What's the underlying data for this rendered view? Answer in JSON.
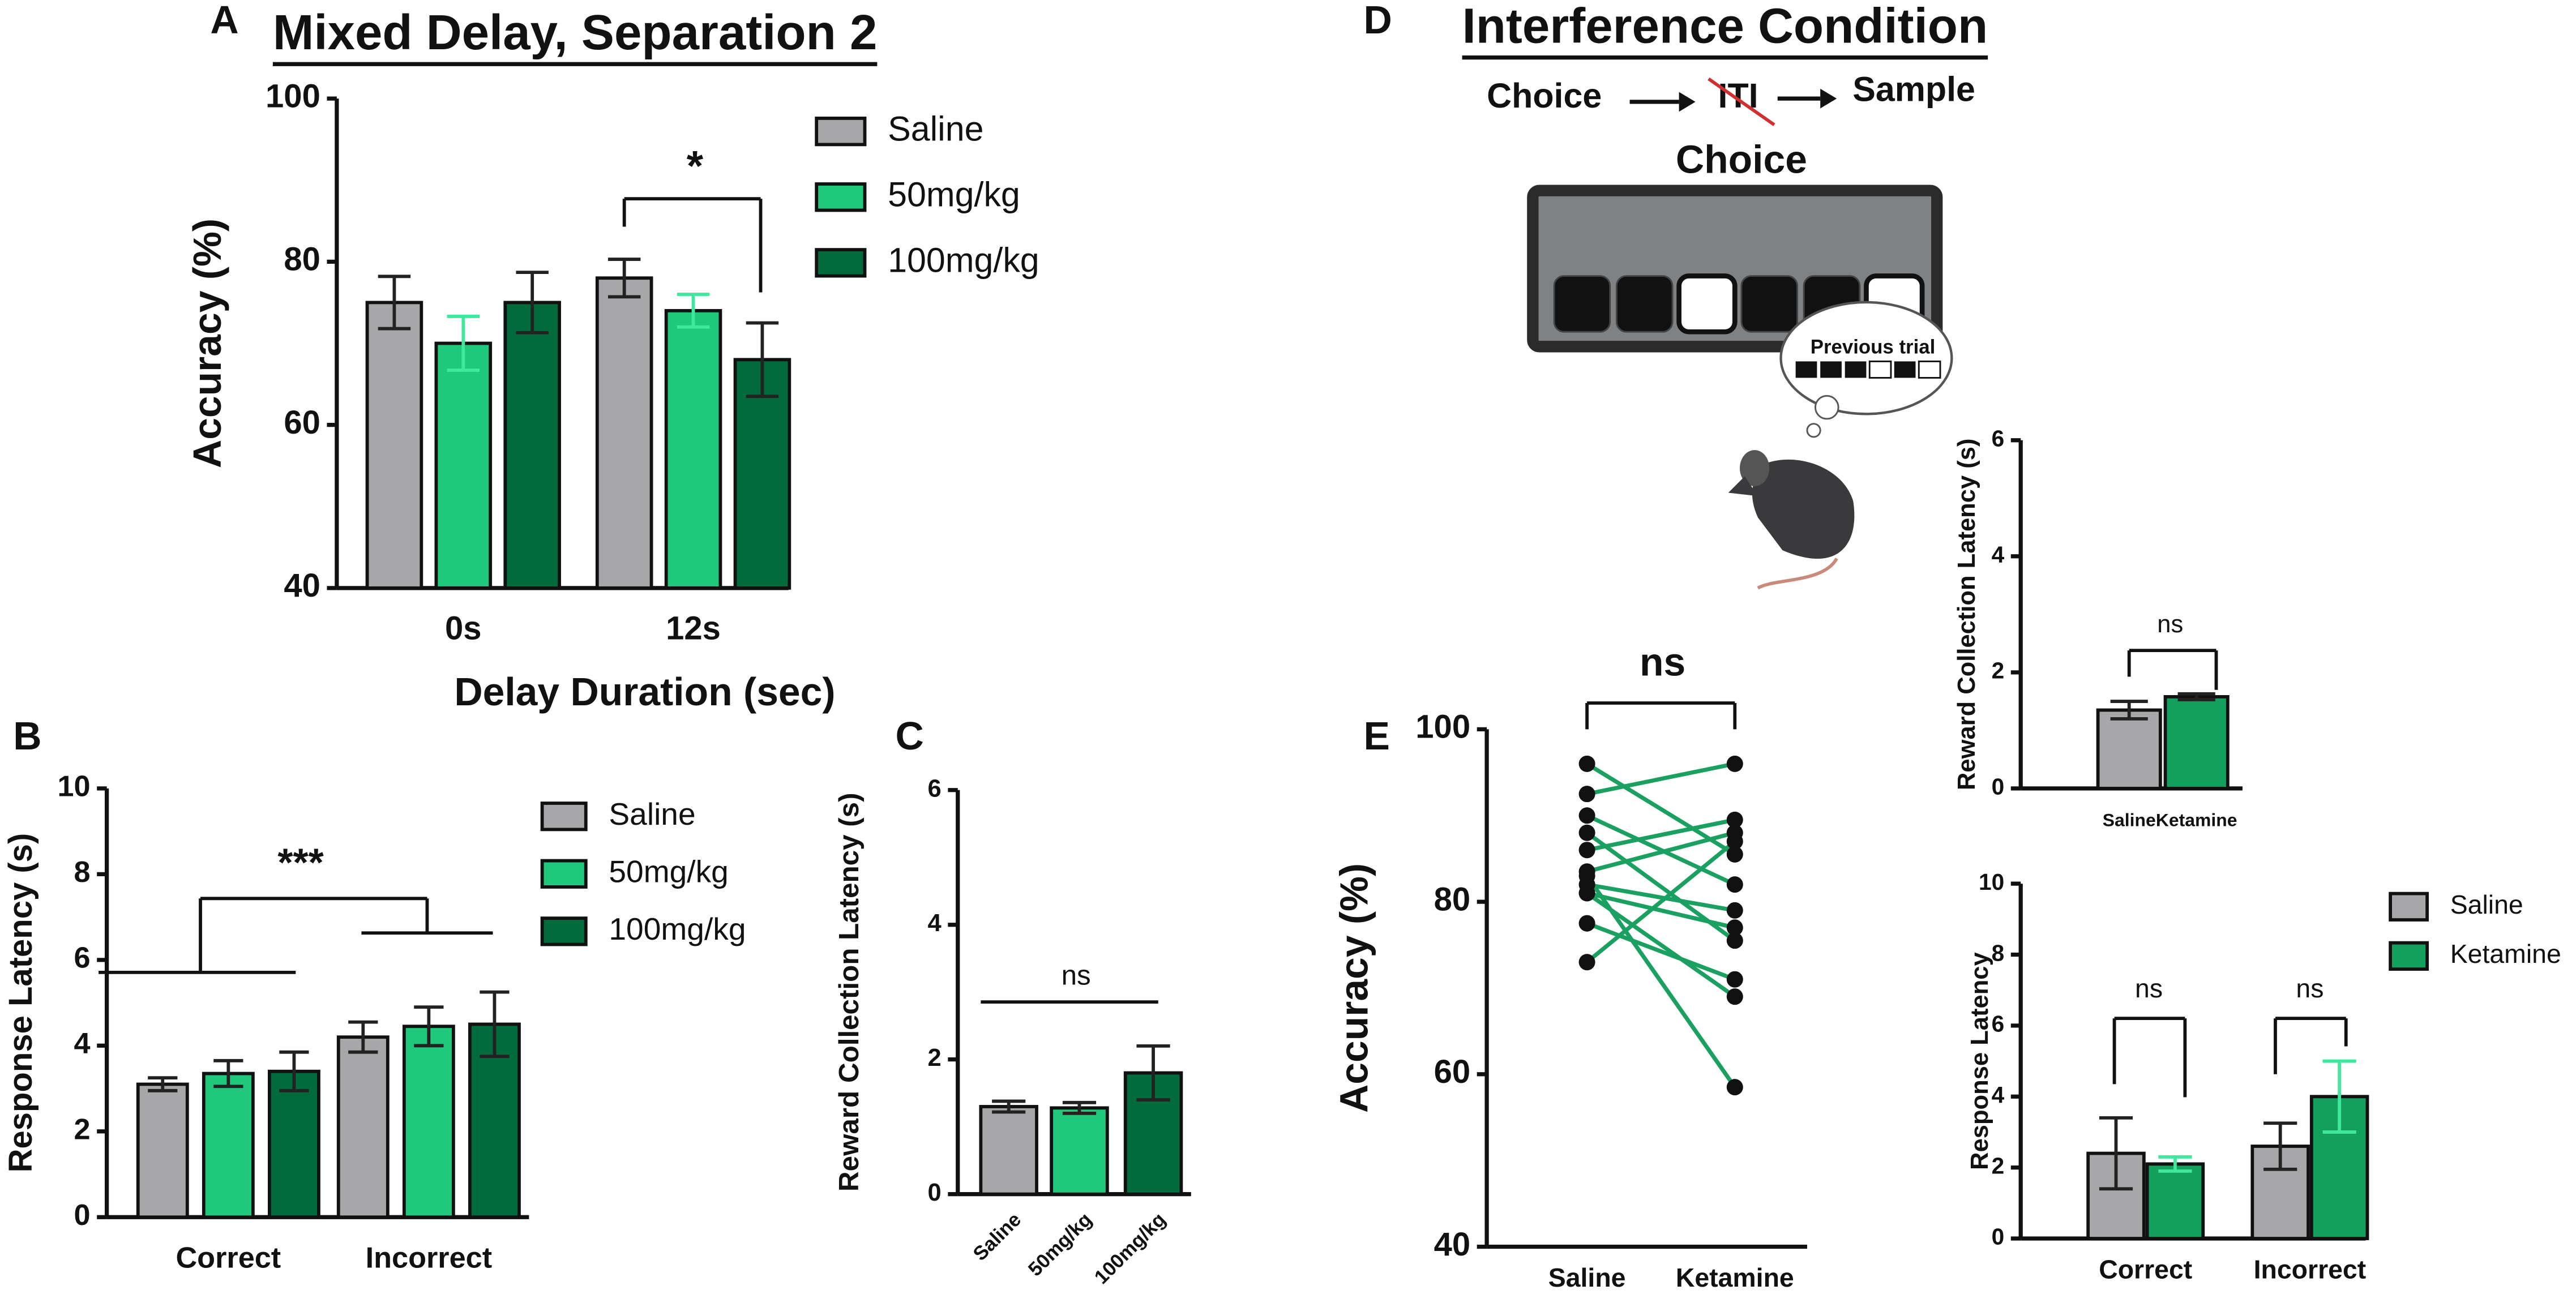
{
  "chart_data": [
    {
      "type": "grouped_bar",
      "panel": "A",
      "title": "Mixed Delay, Separation 2",
      "ylabel": "Accuracy (%)",
      "xlabel": "Delay Duration (sec)",
      "categories": [
        "0s",
        "12s"
      ],
      "series": [
        {
          "name": "Saline",
          "color": "#a7a7a9",
          "error_color": "#222222",
          "values": [
            75,
            78
          ],
          "errors": [
            3.2,
            2.3
          ]
        },
        {
          "name": "50mg/kg",
          "color": "#1fc87b",
          "error_color": "#3fe89c",
          "values": [
            70,
            74
          ],
          "errors": [
            3.3,
            2
          ]
        },
        {
          "name": "100mg/kg",
          "color": "#016b3c",
          "error_color": "#222222",
          "values": [
            75,
            68
          ],
          "errors": [
            3.7,
            4.5
          ]
        }
      ],
      "ylim": [
        40,
        100
      ],
      "yticks": [
        40,
        60,
        80,
        100
      ],
      "annotations": [
        "*"
      ]
    },
    {
      "type": "grouped_bar",
      "panel": "B",
      "ylabel": "Response Latency (s)",
      "categories": [
        "Correct",
        "Incorrect"
      ],
      "series": [
        {
          "name": "Saline",
          "color": "#a7a7a9",
          "error_color": "#222222",
          "values": [
            3.1,
            4.2
          ],
          "errors": [
            0.15,
            0.35
          ]
        },
        {
          "name": "50mg/kg",
          "color": "#1fc87b",
          "error_color": "#222222",
          "values": [
            3.35,
            4.45
          ],
          "errors": [
            0.3,
            0.45
          ]
        },
        {
          "name": "100mg/kg",
          "color": "#016b3c",
          "error_color": "#222222",
          "values": [
            3.4,
            4.5
          ],
          "errors": [
            0.45,
            0.75
          ]
        }
      ],
      "ylim": [
        0,
        10
      ],
      "yticks": [
        0,
        2,
        4,
        6,
        8,
        10
      ],
      "annotations": [
        "***"
      ]
    },
    {
      "type": "bar",
      "panel": "C",
      "ylabel": "Reward Collection Latency (s)",
      "categories": [
        "Saline",
        "50mg/kg",
        "100mg/kg"
      ],
      "values": [
        1.3,
        1.28,
        1.8
      ],
      "errors": [
        0.08,
        0.08,
        0.4
      ],
      "colors": [
        "#a7a7a9",
        "#1fc87b",
        "#016b3c"
      ],
      "ylim": [
        0,
        6
      ],
      "yticks": [
        0,
        2,
        4,
        6
      ],
      "annotations": [
        "ns"
      ]
    },
    {
      "type": "bar",
      "ylabel": "Reward Collection Latency (s)",
      "categories": [
        "Saline",
        "Ketamine"
      ],
      "values": [
        1.35,
        1.58
      ],
      "errors": [
        0.15,
        0.05
      ],
      "colors": [
        "#a7a7a9",
        "#12a05c"
      ],
      "ylim": [
        0,
        6
      ],
      "yticks": [
        0,
        2,
        4,
        6
      ],
      "annotations": [
        "ns"
      ]
    },
    {
      "type": "paired",
      "panel": "E",
      "ylabel": "Accuracy (%)",
      "categories": [
        "Saline",
        "Ketamine"
      ],
      "pairs": [
        [
          96,
          85.5
        ],
        [
          92.5,
          96
        ],
        [
          90,
          82
        ],
        [
          86,
          89.5
        ],
        [
          88,
          75.5
        ],
        [
          83.5,
          88
        ],
        [
          81,
          69
        ],
        [
          82,
          79
        ],
        [
          81,
          77
        ],
        [
          77.5,
          71
        ],
        [
          73,
          87
        ],
        [
          83,
          58.5
        ]
      ],
      "color": "#1aa060",
      "point_color": "#111111",
      "ylim": [
        40,
        100
      ],
      "yticks": [
        40,
        60,
        80,
        100
      ],
      "annotations": [
        "ns"
      ]
    },
    {
      "type": "grouped_bar",
      "ylabel": "Response Latency",
      "categories": [
        "Correct",
        "Incorrect"
      ],
      "series": [
        {
          "name": "Saline",
          "color": "#a7a7a9",
          "error_color": "#222222",
          "values": [
            2.4,
            2.6
          ],
          "errors": [
            1,
            0.65
          ]
        },
        {
          "name": "Ketamine",
          "color": "#12a05c",
          "error_color": "#3fe89c",
          "values": [
            2.1,
            4
          ],
          "errors": [
            0.2,
            1
          ]
        }
      ],
      "ylim": [
        0,
        10
      ],
      "yticks": [
        0,
        2,
        4,
        6,
        8,
        10
      ],
      "annotations": [
        "ns",
        "ns"
      ]
    }
  ],
  "diagram": {
    "panel": "D",
    "title": "Interference Condition",
    "sequence": [
      "Choice",
      "ITI",
      "Sample"
    ],
    "screen_label": "Choice",
    "thought": "Previous trial"
  }
}
